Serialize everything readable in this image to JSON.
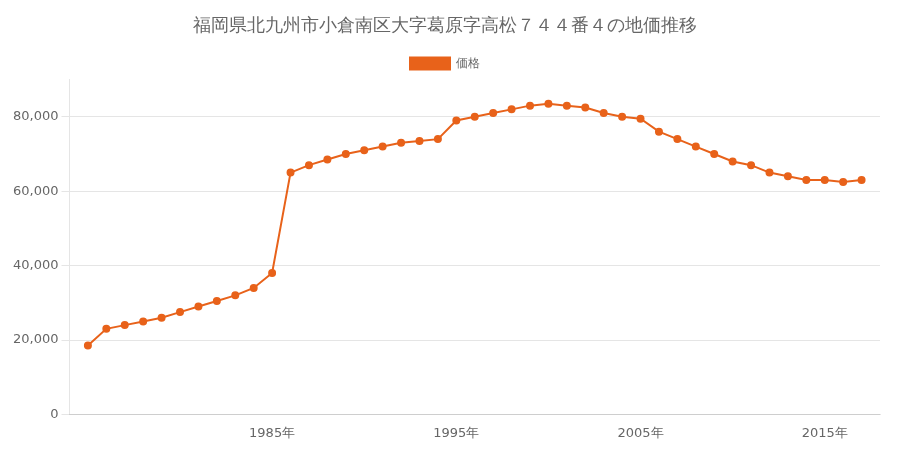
{
  "chart_data": {
    "type": "line",
    "title": "福岡県北九州市小倉南区大字葛原字高松７４４番４の地価推移",
    "x": [
      1975,
      1976,
      1977,
      1978,
      1979,
      1980,
      1981,
      1982,
      1983,
      1984,
      1985,
      1986,
      1987,
      1988,
      1989,
      1990,
      1991,
      1992,
      1993,
      1994,
      1995,
      1996,
      1997,
      1998,
      1999,
      2000,
      2001,
      2002,
      2003,
      2004,
      2005,
      2006,
      2007,
      2008,
      2009,
      2010,
      2011,
      2012,
      2013,
      2014,
      2015,
      2016,
      2017
    ],
    "series": [
      {
        "name": "価格",
        "color": "#E8621A",
        "marker": "circle",
        "values": [
          18500,
          23000,
          24000,
          25000,
          26000,
          27500,
          29000,
          30500,
          32000,
          34000,
          38000,
          65000,
          67000,
          68500,
          70000,
          71000,
          72000,
          73000,
          73500,
          74000,
          79000,
          80000,
          81000,
          82000,
          83000,
          83500,
          83000,
          82500,
          81000,
          80000,
          79500,
          76000,
          74000,
          72000,
          70000,
          68000,
          67000,
          65000,
          64000,
          63000,
          63000,
          62500,
          63000
        ]
      }
    ],
    "xlim": [
      1974,
      2018
    ],
    "xticks": [
      {
        "value": 1985,
        "label": "1985年"
      },
      {
        "value": 1995,
        "label": "1995年"
      },
      {
        "value": 2005,
        "label": "2005年"
      },
      {
        "value": 2015,
        "label": "2015年"
      }
    ],
    "ylim": [
      0,
      90000
    ],
    "yticks": [
      0,
      {
        "value": 20000,
        "label": "20,000"
      },
      {
        "value": 40000,
        "label": "40,000"
      },
      {
        "value": 60000,
        "label": "60,000"
      },
      {
        "value": 80000,
        "label": "80,000"
      }
    ],
    "grid": "y",
    "legend": "top"
  }
}
